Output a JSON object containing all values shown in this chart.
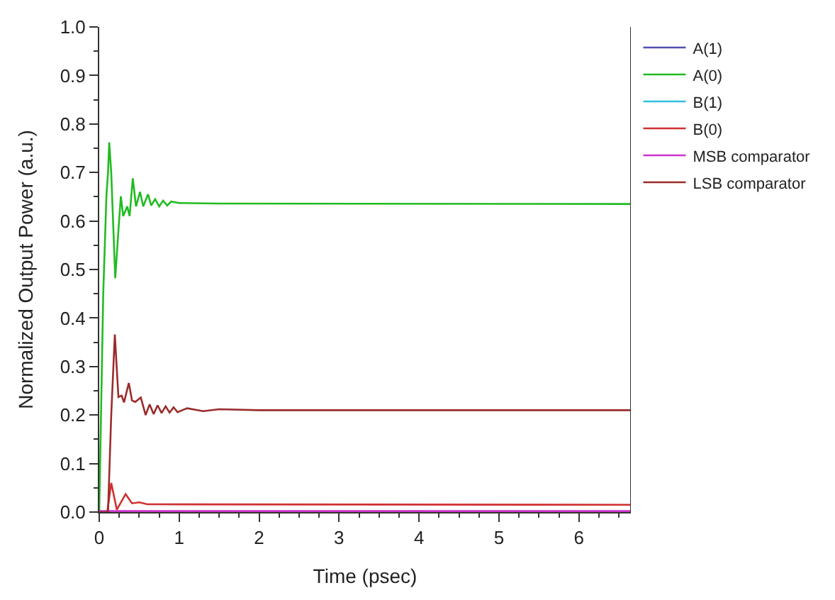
{
  "chart_data": {
    "type": "line",
    "xlabel": "Time (psec)",
    "ylabel": "Normalized Output Power (a.u.)",
    "xlim": [
      0,
      6.65
    ],
    "xticks": [
      0,
      1,
      2,
      3,
      4,
      5,
      6
    ],
    "ylim": [
      0,
      1
    ],
    "yticks": [
      {
        "value": 0,
        "label": "0.0"
      },
      0.1,
      0.2,
      0.3,
      0.4,
      0.5,
      0.6,
      0.7,
      0.8,
      0.9,
      {
        "value": 1,
        "label": "1.0"
      }
    ],
    "legend": "right",
    "marker": "none",
    "line_style": "solid",
    "series": [
      {
        "name": "A(1)",
        "color": "#5050b0"
      },
      {
        "name": "A(0)",
        "color": "#22bb22",
        "x": [
          0,
          0.05,
          0.09,
          0.11,
          0.125,
          0.15,
          0.2,
          0.24,
          0.27,
          0.3,
          0.35,
          0.38,
          0.42,
          0.46,
          0.51,
          0.55,
          0.61,
          0.65,
          0.7,
          0.75,
          0.8,
          0.85,
          0.9,
          1.0,
          1.5,
          6.65
        ],
        "values": [
          0,
          0.45,
          0.652,
          0.7,
          0.762,
          0.7,
          0.482,
          0.58,
          0.651,
          0.61,
          0.63,
          0.61,
          0.688,
          0.63,
          0.66,
          0.63,
          0.655,
          0.632,
          0.645,
          0.63,
          0.642,
          0.632,
          0.64,
          0.637,
          0.636,
          0.635
        ]
      },
      {
        "name": "B(1)",
        "color": "#30c0e0"
      },
      {
        "name": "B(0)",
        "color": "#d03030",
        "x": [
          0,
          0.1,
          0.15,
          0.22,
          0.33,
          0.41,
          0.5,
          0.6,
          6.65
        ],
        "values": [
          0,
          0,
          0.06,
          0.005,
          0.037,
          0.018,
          0.02,
          0.016,
          0.015
        ]
      },
      {
        "name": "MSB comparator",
        "color": "#cc33cc",
        "x": [
          0,
          6.65
        ],
        "values": [
          0.002,
          0.002
        ]
      },
      {
        "name": "LSB comparator",
        "color": "#9b2c2c",
        "x": [
          0,
          0.11,
          0.15,
          0.195,
          0.24,
          0.28,
          0.31,
          0.37,
          0.41,
          0.45,
          0.52,
          0.58,
          0.63,
          0.68,
          0.73,
          0.78,
          0.83,
          0.88,
          0.93,
          0.98,
          1.1,
          1.3,
          1.5,
          2,
          6.65
        ],
        "values": [
          0,
          0,
          0.2,
          0.366,
          0.237,
          0.24,
          0.226,
          0.266,
          0.23,
          0.227,
          0.236,
          0.2,
          0.222,
          0.202,
          0.22,
          0.204,
          0.218,
          0.205,
          0.216,
          0.206,
          0.214,
          0.208,
          0.212,
          0.21,
          0.21
        ]
      }
    ]
  }
}
